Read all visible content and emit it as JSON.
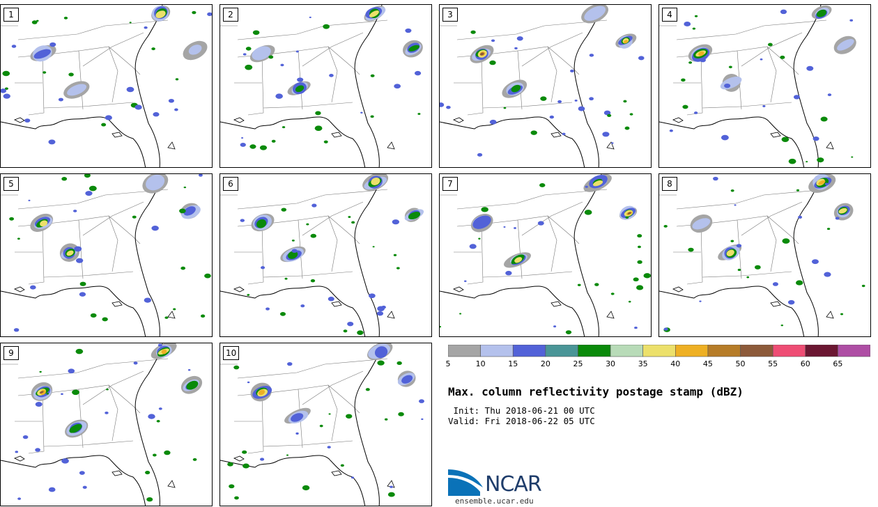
{
  "panels": [
    "1",
    "2",
    "3",
    "4",
    "5",
    "6",
    "7",
    "8",
    "9",
    "10"
  ],
  "colorbar": {
    "colors": [
      "#a5a5a5",
      "#b4c1ec",
      "#5262d8",
      "#4a9597",
      "#0a8a0a",
      "#b8dbb8",
      "#ece06b",
      "#eeb024",
      "#b67c28",
      "#8c5a3a",
      "#ee4d74",
      "#6b1732",
      "#ae4ea4"
    ],
    "tick_labels": [
      "5",
      "10",
      "15",
      "20",
      "25",
      "30",
      "35",
      "40",
      "45",
      "50",
      "55",
      "60",
      "65"
    ]
  },
  "title": "Max. column reflectivity postage stamp (dBZ)",
  "init_line": " Init: Thu 2018-06-21 00 UTC",
  "valid_line": "Valid: Fri 2018-06-22 05 UTC",
  "logo": {
    "text": "NCAR",
    "url": "ensemble.ucar.edu",
    "color": "#1f3d6b",
    "swoosh_color": "#0a72b8"
  }
}
